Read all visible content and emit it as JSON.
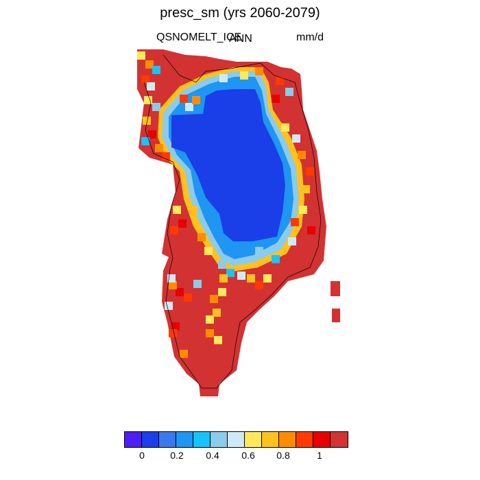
{
  "title": "presc_sm (yrs 2060-2079)",
  "left_subtitle": "QSNOMELT_ICE",
  "center_subtitle": "ANN",
  "right_subtitle": "mm/d",
  "colorbar": {
    "colors": [
      "#4d1ef5",
      "#1a3ee8",
      "#3a78ef",
      "#1e96f2",
      "#18c3f7",
      "#8ccbea",
      "#cfeaf7",
      "#ffe95a",
      "#ffc21c",
      "#ff8c00",
      "#ff3a00",
      "#e80000",
      "#d23232"
    ],
    "labels": [
      "0",
      "0.2",
      "0.4",
      "0.6",
      "0.8",
      "1"
    ]
  }
}
